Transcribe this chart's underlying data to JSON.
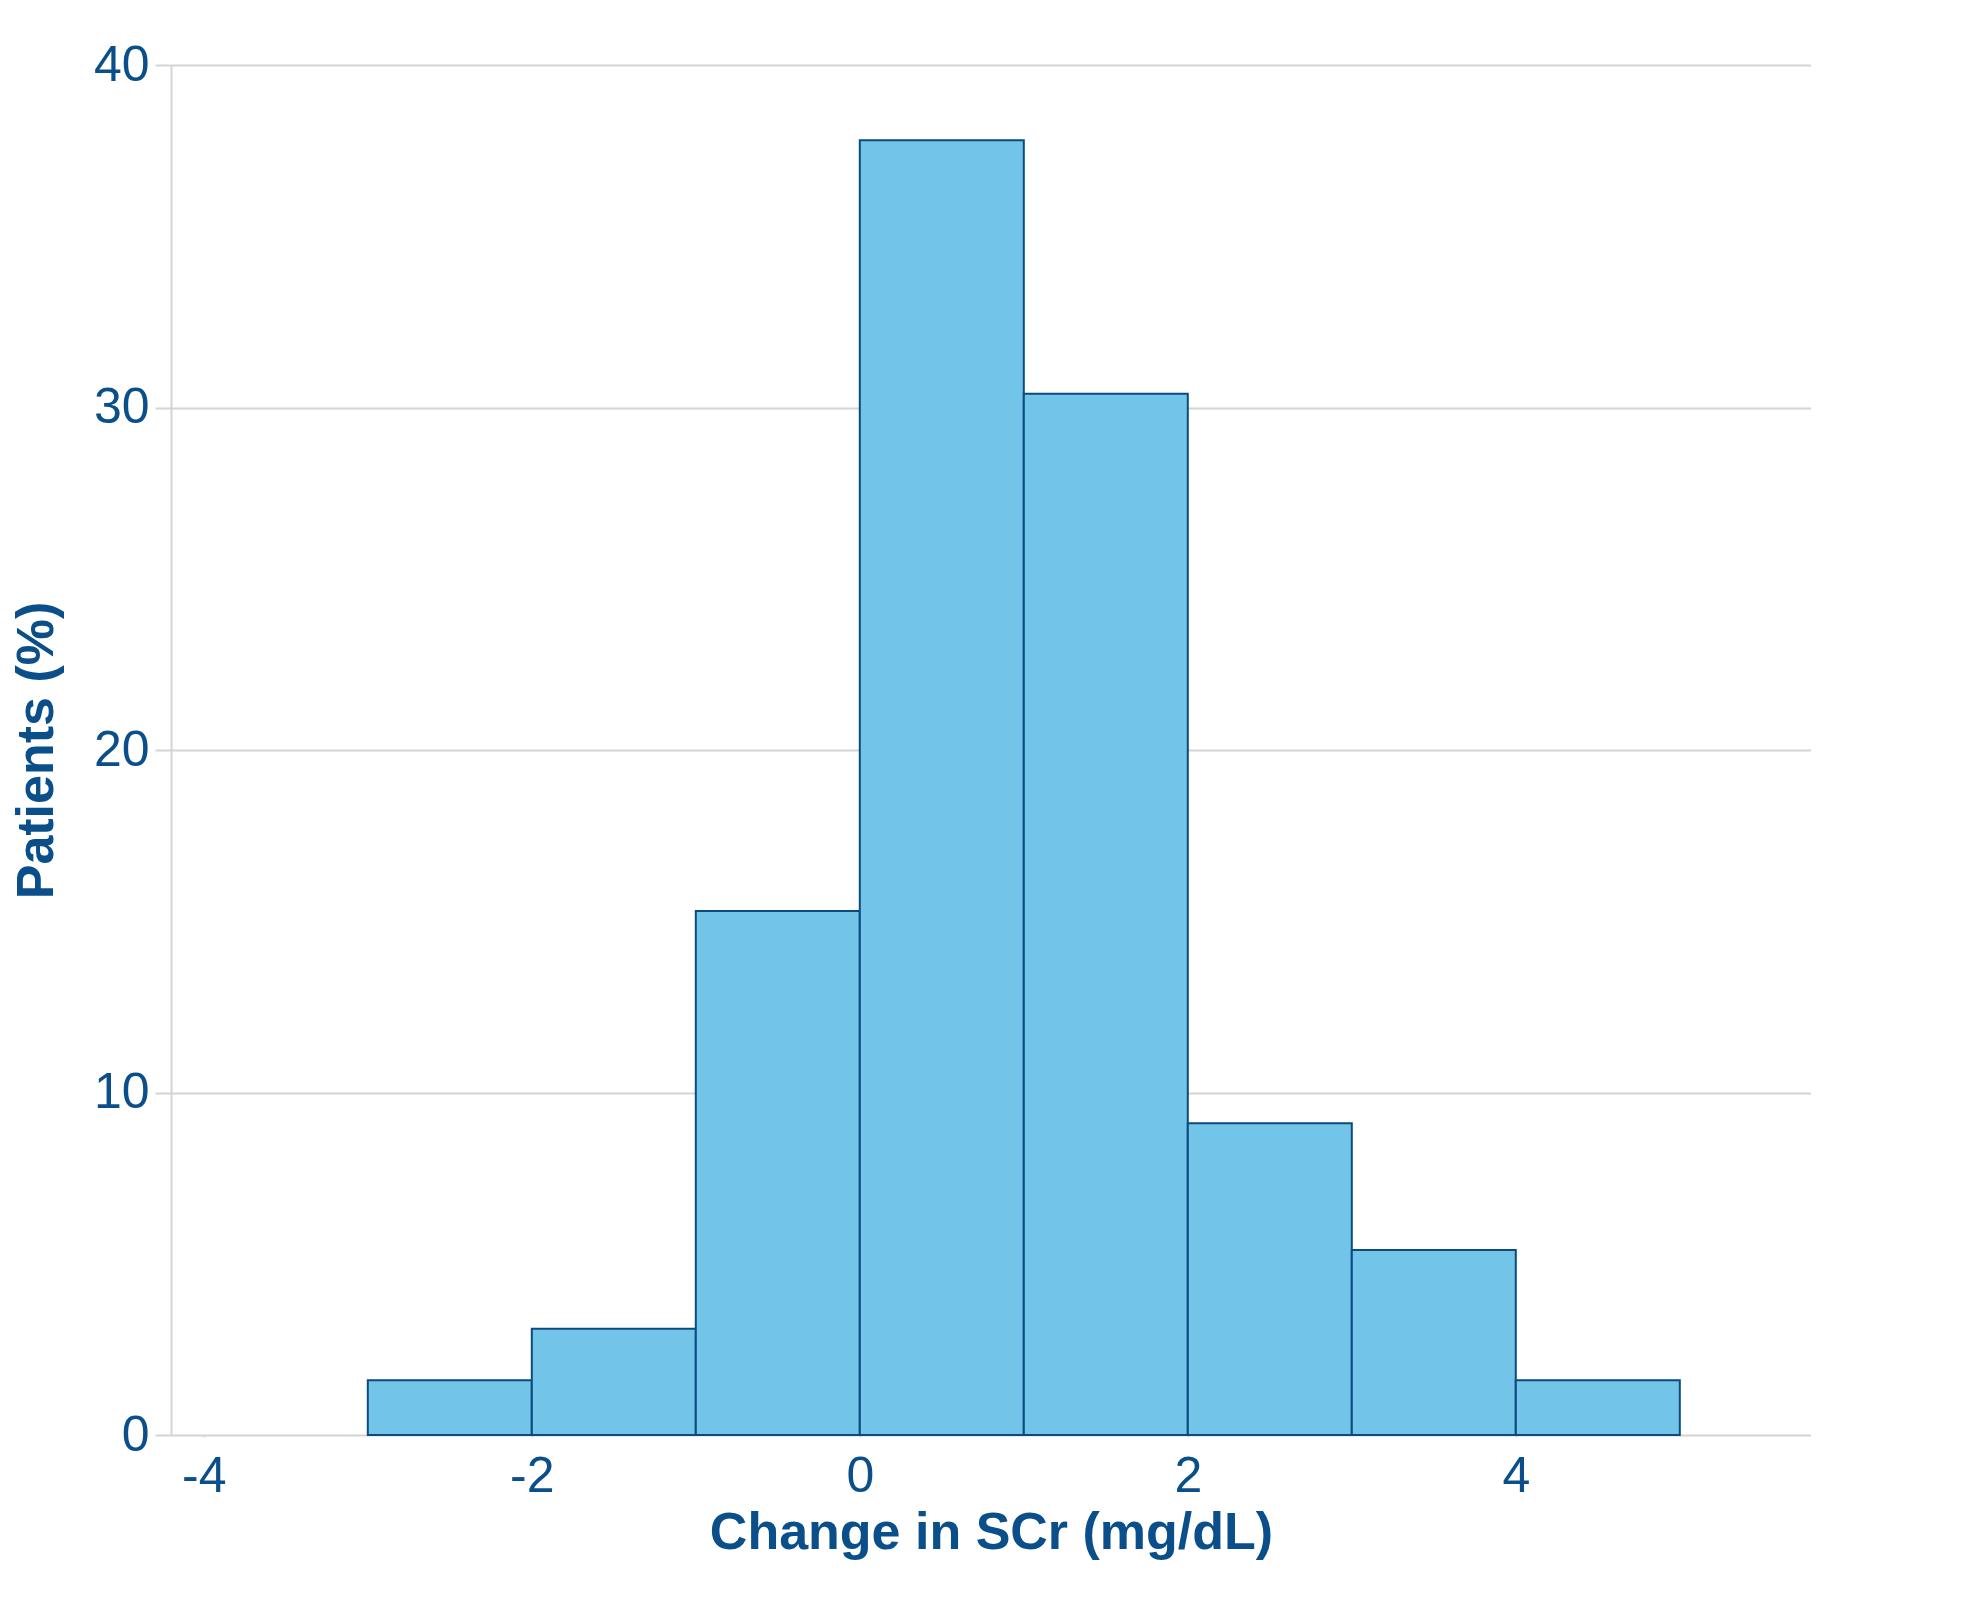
{
  "chart_data": {
    "type": "histogram",
    "xlabel": "Change in SCr (mg/dL)",
    "ylabel": "Patients (%)",
    "bins": [
      -3,
      -2,
      -1,
      0,
      1,
      2,
      3,
      4,
      5
    ],
    "values": [
      1.6,
      3.1,
      15.3,
      37.8,
      30.4,
      9.1,
      5.4,
      1.6
    ],
    "color": "#72c4e8",
    "xlim": [
      -4.2,
      5.8
    ],
    "xticks": [
      -4,
      -2,
      0,
      2,
      4
    ],
    "ylim": [
      0,
      40
    ],
    "yticks": [
      0,
      10,
      20,
      30,
      40
    ],
    "grid": "y"
  }
}
